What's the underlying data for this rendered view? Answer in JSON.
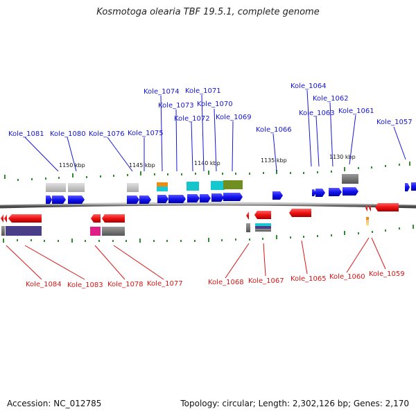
{
  "title": "Kosmotoga olearia TBF 19.5.1, complete genome",
  "footer": {
    "accession": "Accession: NC_012785",
    "stats": "Topology: circular; Length: 2,302,126 bp; Genes: 2,170"
  },
  "scale_labels": [
    "1150 kbp",
    "1145 kbp",
    "1140 kbp",
    "1135 kbp",
    "1130 kbp"
  ],
  "top_labels": [
    "Kole_1081",
    "Kole_1080",
    "Kole_1076",
    "Kole_1075",
    "Kole_1074",
    "Kole_1073",
    "Kole_1072",
    "Kole_1071",
    "Kole_1070",
    "Kole_1069",
    "Kole_1066",
    "Kole_1064",
    "Kole_1063",
    "Kole_1062",
    "Kole_1061",
    "Kole_1057"
  ],
  "bottom_labels": [
    "Kole_1084",
    "Kole_1083",
    "Kole_1078",
    "Kole_1077",
    "Kole_1068",
    "Kole_1067",
    "Kole_1065",
    "Kole_1060",
    "Kole_1059"
  ],
  "colors": {
    "forward_strand": "#1111ee",
    "reverse_strand": "#ee1111",
    "top_label": "#1515d8",
    "bottom_label": "#d81515",
    "backbone": "#888888",
    "tick": "#2e8b2e"
  }
}
